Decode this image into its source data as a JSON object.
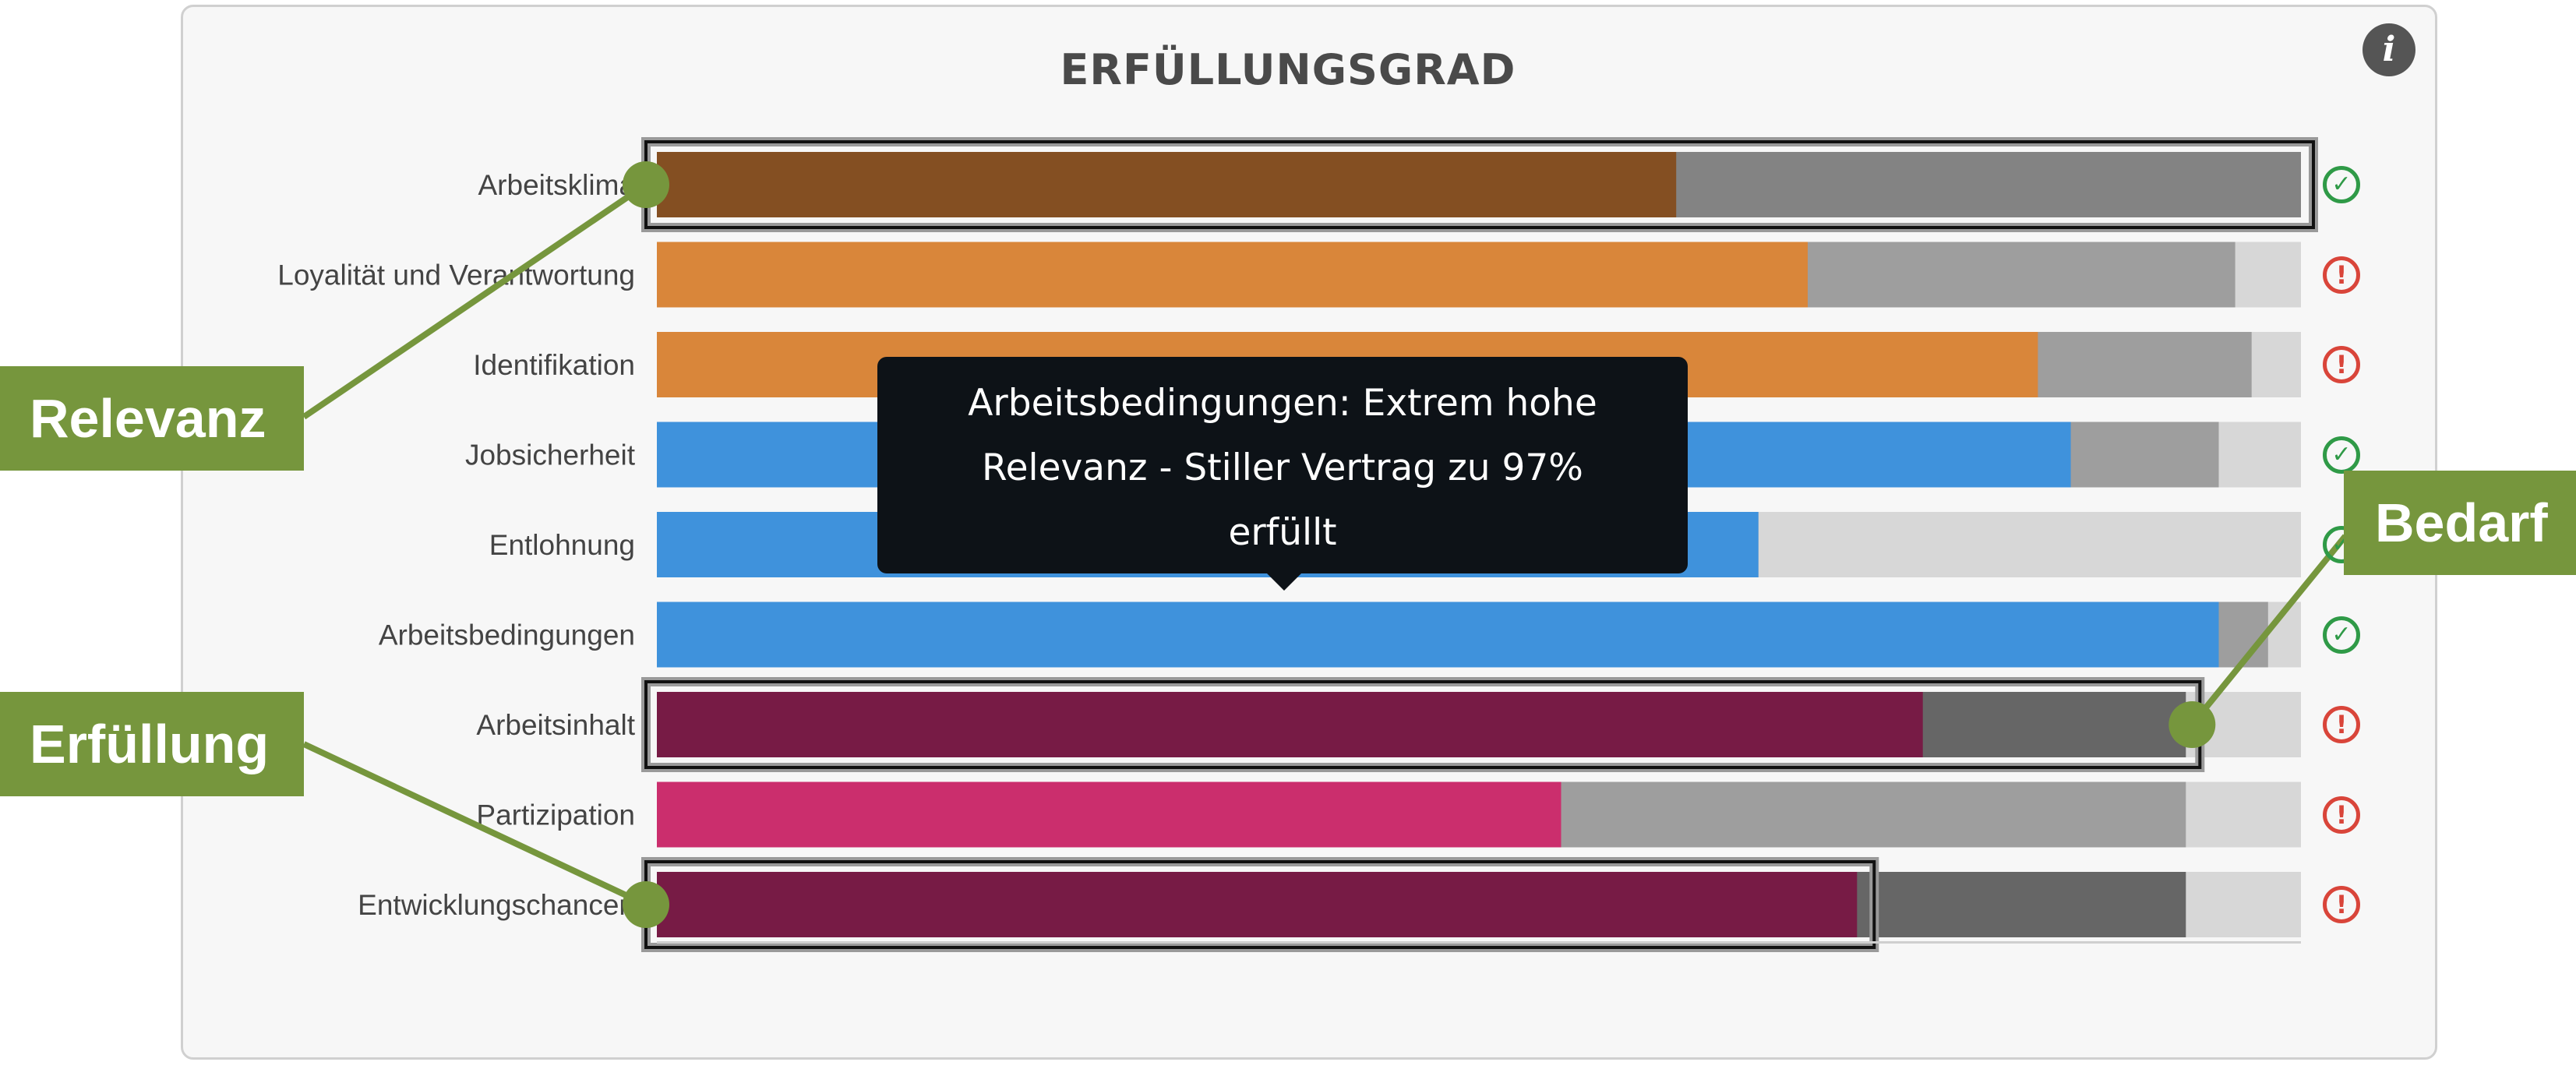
{
  "title": "ERFÜLLUNGSGRAD",
  "info_icon": "info-icon",
  "tooltip": {
    "lines": [
      "Arbeitsbedingungen: Extrem hohe",
      "Relevanz - Stiller Vertrag zu 97%",
      "erfüllt"
    ]
  },
  "callouts": {
    "relevanz": "Relevanz",
    "erfuellung": "Erfüllung",
    "bedarf": "Bedarf"
  },
  "chart_data": {
    "type": "bar",
    "orientation": "horizontal",
    "stacked": true,
    "title": "ERFÜLLUNGSGRAD",
    "xlim": [
      0,
      100
    ],
    "categories": [
      "Arbeitsklima",
      "Loyalität und Verantwortung",
      "Identifikation",
      "Jobsicherheit",
      "Entlohnung",
      "Arbeitsbedingungen",
      "Arbeitsinhalt",
      "Partizipation",
      "Entwicklungschancen"
    ],
    "erfuellung": [
      62,
      70,
      84,
      86,
      67,
      95,
      77,
      55,
      73
    ],
    "bedarf": [
      100,
      96,
      97,
      95,
      67,
      98,
      93,
      93,
      93
    ],
    "colors": [
      "#844f22",
      "#d9863a",
      "#d9863a",
      "#3f92dc",
      "#3f92dc",
      "#3f92dc",
      "#771b45",
      "#cb2e6d",
      "#771b45"
    ],
    "status": [
      "ok",
      "warn",
      "warn",
      "ok",
      "ok",
      "ok",
      "warn",
      "warn",
      "warn"
    ],
    "highlighted": [
      "Arbeitsklima",
      "Arbeitsinhalt",
      "Entwicklungschancen"
    ],
    "colors_bg": {
      "bedarf": "#9e9e9e",
      "rest": "#d7d7d7"
    }
  }
}
